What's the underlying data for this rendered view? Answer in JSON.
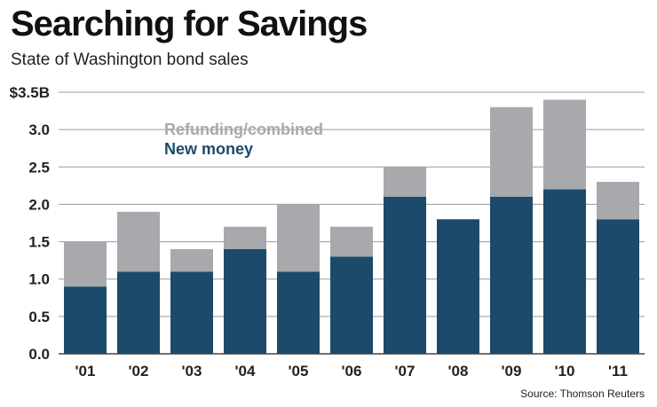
{
  "header": {
    "title": "Searching for Savings",
    "subtitle": "State of Washington bond sales"
  },
  "footer": {
    "source": "Source: Thomson Reuters"
  },
  "colors": {
    "refunding": "#a7a9ac",
    "new_money": "#1b4a6b",
    "grid": "#9a9a9a"
  },
  "chart_data": {
    "type": "bar",
    "stacked": true,
    "title": "Searching for Savings",
    "subtitle": "State of Washington bond sales",
    "categories": [
      "'01",
      "'02",
      "'03",
      "'04",
      "'05",
      "'06",
      "'07",
      "'08",
      "'09",
      "'10",
      "'11"
    ],
    "series": [
      {
        "name": "New money",
        "color": "#1b4a6b",
        "values": [
          0.9,
          1.1,
          1.1,
          1.4,
          1.1,
          1.3,
          2.1,
          1.8,
          2.1,
          2.2,
          1.8
        ]
      },
      {
        "name": "Refunding/combined",
        "color": "#a7a9ac",
        "values": [
          0.6,
          0.8,
          0.3,
          0.3,
          0.9,
          0.4,
          0.4,
          0.0,
          1.2,
          1.2,
          0.5
        ]
      }
    ],
    "yticks": [
      "0.0",
      "0.5",
      "1.0",
      "1.5",
      "2.0",
      "2.5",
      "3.0",
      "$3.5B"
    ],
    "ylim": [
      0,
      3.5
    ],
    "grid": true,
    "legend": {
      "placement": "top-left",
      "items": [
        "Refunding/combined",
        "New money"
      ]
    }
  }
}
